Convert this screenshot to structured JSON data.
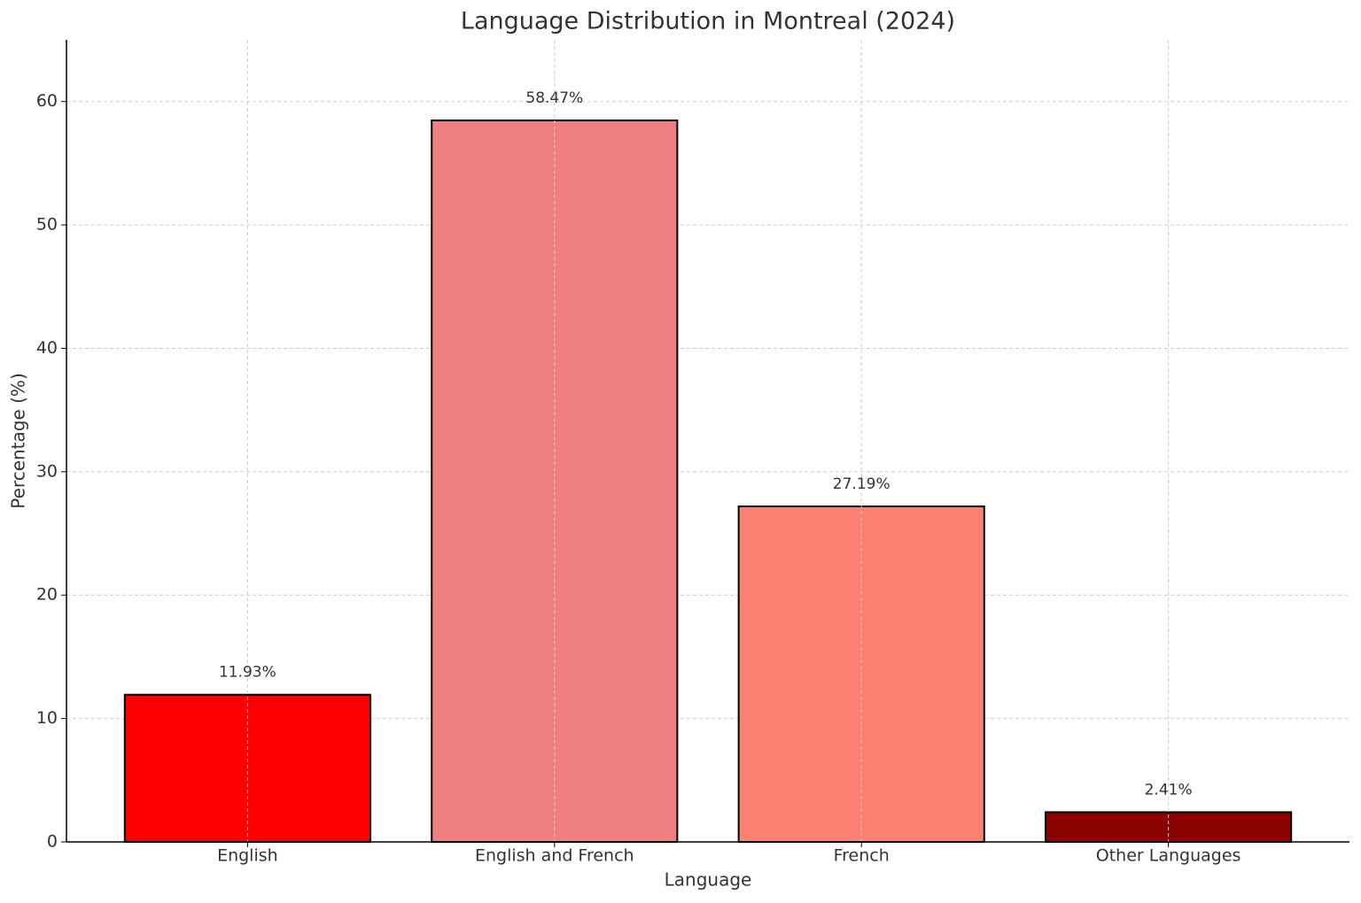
{
  "chart_data": {
    "type": "bar",
    "title": "Language Distribution in Montreal (2024)",
    "x_label": "Language",
    "y_label": "Percentage (%)",
    "categories": [
      "English",
      "English and French",
      "French",
      "Other Languages"
    ],
    "values": [
      11.93,
      58.47,
      27.19,
      2.41
    ],
    "value_labels": [
      "11.93%",
      "58.47%",
      "27.19%",
      "2.41%"
    ],
    "colors": [
      "#ff0000",
      "#f08080",
      "#fa8072",
      "#8b0000"
    ],
    "ylim": [
      0,
      65
    ],
    "yticks": [
      0,
      10,
      20,
      30,
      40,
      50,
      60
    ],
    "grid": true
  }
}
